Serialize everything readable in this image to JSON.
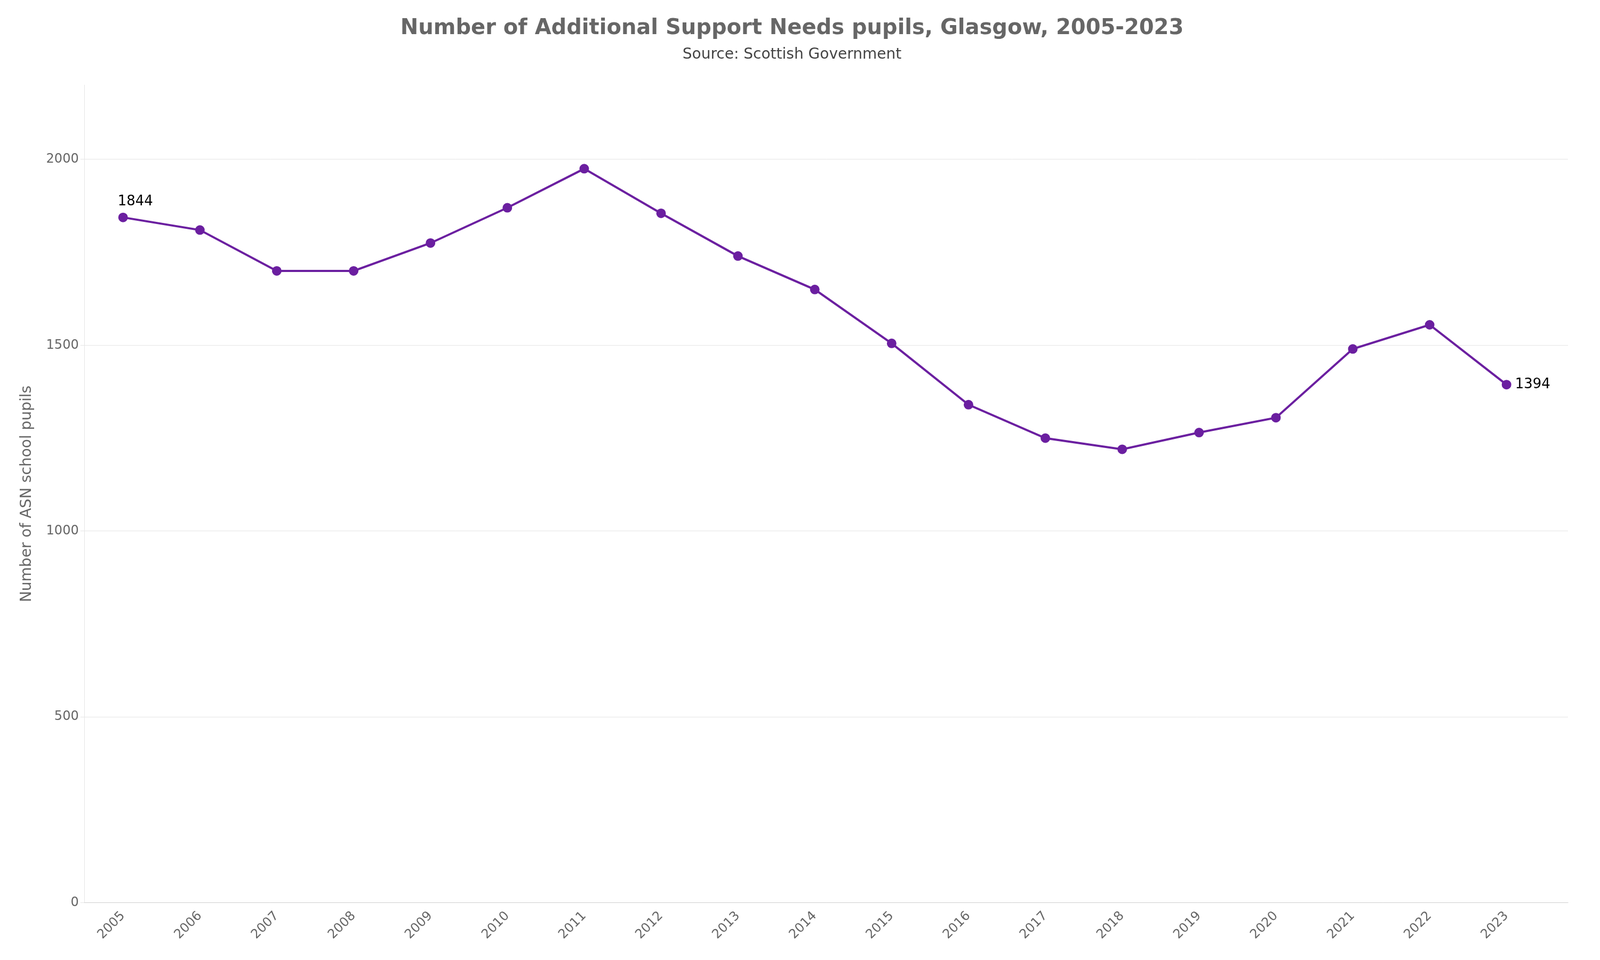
{
  "chart_data": {
    "type": "line",
    "title": "Number of Additional Support Needs pupils, Glasgow, 2005-2023",
    "subtitle": "Source: Scottish Government",
    "ylabel": "Number of ASN school pupils",
    "x": [
      2005,
      2006,
      2007,
      2008,
      2009,
      2010,
      2011,
      2012,
      2013,
      2014,
      2015,
      2016,
      2017,
      2018,
      2019,
      2020,
      2021,
      2022,
      2023
    ],
    "values": [
      1844,
      1810,
      1700,
      1700,
      1775,
      1870,
      1975,
      1855,
      1740,
      1650,
      1505,
      1340,
      1250,
      1220,
      1265,
      1305,
      1490,
      1555,
      1394
    ],
    "color": "#6B1FA0",
    "marker": "circle",
    "xlim": [
      2004.5,
      2023.8
    ],
    "xticks": [
      2005,
      2006,
      2007,
      2008,
      2009,
      2010,
      2011,
      2012,
      2013,
      2014,
      2015,
      2016,
      2017,
      2018,
      2019,
      2020,
      2021,
      2022,
      2023
    ],
    "ylim": [
      0,
      2200
    ],
    "yticks": [
      0,
      500,
      1000,
      1500,
      2000
    ],
    "grid": true,
    "annotations": [
      {
        "text": "1844",
        "x": 2005,
        "y": 1844
      },
      {
        "text": "1394",
        "x": 2023,
        "y": 1394
      }
    ]
  }
}
